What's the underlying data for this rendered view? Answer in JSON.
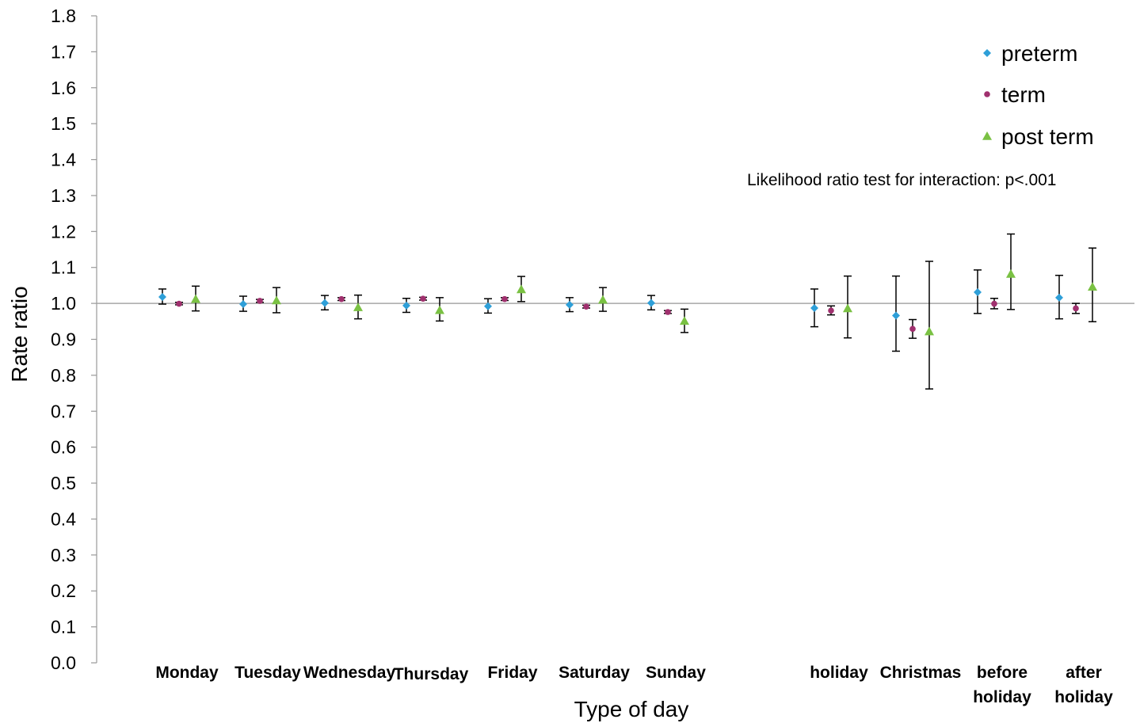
{
  "chart_data": {
    "type": "scatter",
    "xlabel": "Type of day",
    "ylabel": "Rate ratio",
    "ylim": [
      0.0,
      1.8
    ],
    "yticks": [
      "0.0",
      "0.1",
      "0.2",
      "0.3",
      "0.4",
      "0.5",
      "0.6",
      "0.7",
      "0.8",
      "0.9",
      "1.0",
      "1.1",
      "1.2",
      "1.3",
      "1.4",
      "1.5",
      "1.6",
      "1.7",
      "1.8"
    ],
    "reference_line": 1.0,
    "grid": false,
    "legend_position": "top-right",
    "annotation": "Likelihood ratio test for interaction: p<.001",
    "categories": [
      {
        "lines": [
          "Monday"
        ]
      },
      {
        "lines": [
          "Tuesday"
        ]
      },
      {
        "lines": [
          "Wednesday"
        ]
      },
      {
        "lines": [
          "Thursday"
        ]
      },
      {
        "lines": [
          "Friday"
        ]
      },
      {
        "lines": [
          "Saturday"
        ]
      },
      {
        "lines": [
          "Sunday"
        ]
      },
      {
        "lines": [
          "holiday"
        ]
      },
      {
        "lines": [
          "Christmas"
        ]
      },
      {
        "lines": [
          "before",
          "holiday"
        ]
      },
      {
        "lines": [
          "after",
          "holiday"
        ]
      }
    ],
    "series": [
      {
        "name": "preterm",
        "color": "#2e9fd8",
        "marker": "diamond",
        "values": [
          1.018,
          0.998,
          1.001,
          0.994,
          0.992,
          0.996,
          1.001,
          0.987,
          0.966,
          1.031,
          1.016
        ],
        "lower": [
          0.998,
          0.978,
          0.982,
          0.975,
          0.973,
          0.977,
          0.982,
          0.935,
          0.867,
          0.972,
          0.957
        ],
        "upper": [
          1.04,
          1.02,
          1.022,
          1.014,
          1.013,
          1.016,
          1.022,
          1.04,
          1.076,
          1.093,
          1.078
        ]
      },
      {
        "name": "term",
        "color": "#a0306e",
        "marker": "circle",
        "values": [
          0.999,
          1.007,
          1.012,
          1.013,
          1.012,
          0.991,
          0.976,
          0.98,
          0.929,
          0.999,
          0.986
        ],
        "lower": [
          0.996,
          1.003,
          1.008,
          1.009,
          1.008,
          0.987,
          0.972,
          0.968,
          0.903,
          0.985,
          0.972
        ],
        "upper": [
          1.003,
          1.011,
          1.016,
          1.017,
          1.016,
          0.995,
          0.98,
          0.993,
          0.955,
          1.014,
          1.0
        ]
      },
      {
        "name": "post term",
        "color": "#7ac143",
        "marker": "triangle",
        "values": [
          1.012,
          1.008,
          0.989,
          0.981,
          1.039,
          1.01,
          0.951,
          0.986,
          0.922,
          1.082,
          1.046
        ],
        "lower": [
          0.979,
          0.974,
          0.957,
          0.951,
          1.005,
          0.978,
          0.919,
          0.904,
          0.762,
          0.983,
          0.949
        ],
        "upper": [
          1.048,
          1.044,
          1.023,
          1.016,
          1.075,
          1.044,
          0.984,
          1.076,
          1.117,
          1.193,
          1.154
        ]
      }
    ]
  }
}
